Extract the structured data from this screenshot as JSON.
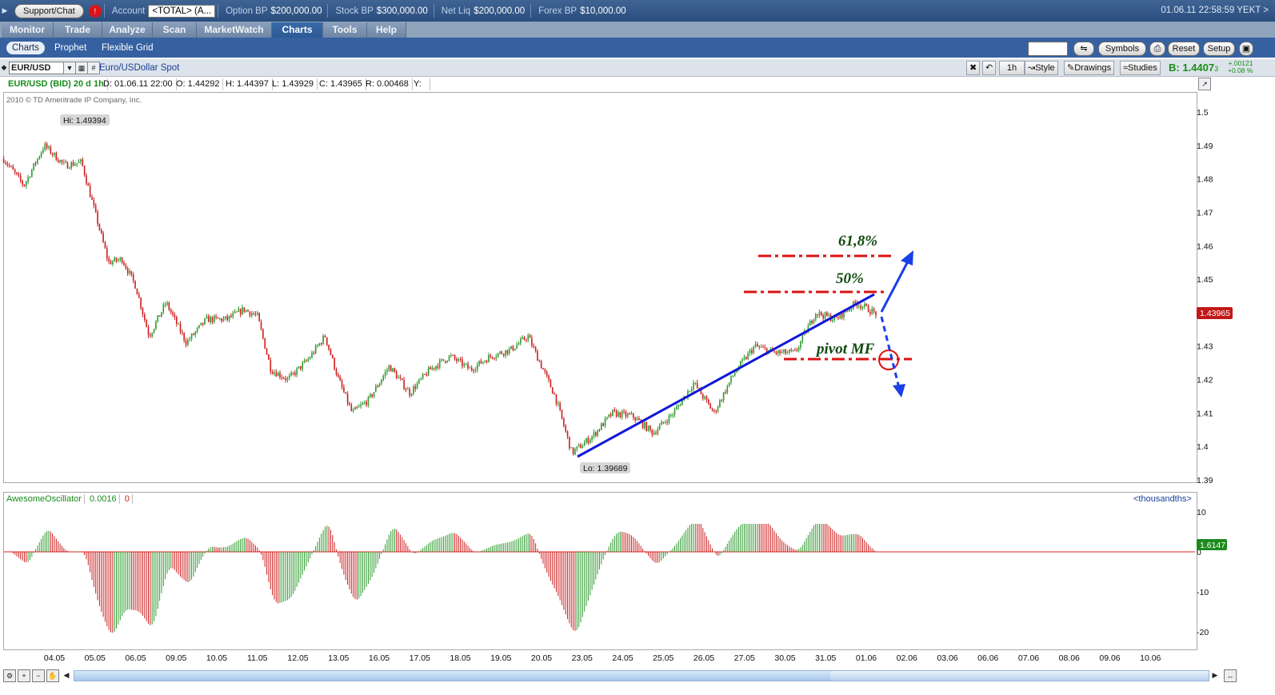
{
  "topbar": {
    "support_label": "Support/Chat",
    "account_label": "Account",
    "account_value": "<TOTAL> (A...",
    "option_bp_label": "Option BP",
    "option_bp_value": "$200,000.00",
    "stock_bp_label": "Stock BP",
    "stock_bp_value": "$300,000.00",
    "net_liq_label": "Net Liq",
    "net_liq_value": "$200,000.00",
    "forex_bp_label": "Forex BP",
    "forex_bp_value": "$10,000.00",
    "clock": "01.06.11 22:58:59 YEKT >"
  },
  "main_tabs": [
    {
      "label": "Monitor",
      "active": false
    },
    {
      "label": "Trade",
      "active": false
    },
    {
      "label": "Analyze",
      "active": false
    },
    {
      "label": "Scan",
      "active": false
    },
    {
      "label": "MarketWatch",
      "active": false
    },
    {
      "label": "Charts",
      "active": true
    },
    {
      "label": "Tools",
      "active": false
    },
    {
      "label": "Help",
      "active": false
    }
  ],
  "sub_tabs": [
    {
      "label": "Charts",
      "active": true
    },
    {
      "label": "Prophet",
      "active": false
    },
    {
      "label": "Flexible Grid",
      "active": false
    }
  ],
  "right_buttons": {
    "symbols": "Symbols",
    "reset": "Reset",
    "setup": "Setup"
  },
  "chart_toolbar": {
    "symbol": "EUR/USD",
    "hash": "#",
    "instrument_name": "Euro/USDollar Spot",
    "timeframe": "1h",
    "style": "Style",
    "drawings": "Drawings",
    "studies": "Studies",
    "bid": "B: 1.4407",
    "bid_small": "3",
    "change_abs": "+.00121",
    "change_pct": "+0.08 %"
  },
  "info_row": {
    "title": "EUR/USD (BID) 20 d 1h",
    "date": "D: 01.06.11 22:00",
    "open": "O: 1.44292",
    "high": "H: 1.44397",
    "low": "L: 1.43929",
    "close": "C: 1.43965",
    "range": "R: 0.00468",
    "y": "Y:"
  },
  "copyright": "2010 © TD Ameritrade IP Company, Inc.",
  "annotations": {
    "hi": "Hi: 1.49394",
    "lo": "Lo: 1.39689",
    "fib_618": "61,8%",
    "fib_50": "50%",
    "pivot": "pivot MF",
    "last_price": "1.43965"
  },
  "price_axis_labels": [
    "1.5",
    "1.49",
    "1.48",
    "1.47",
    "1.46",
    "1.45",
    "1.44",
    "1.43",
    "1.42",
    "1.41",
    "1.4",
    "1.39"
  ],
  "oscillator": {
    "name": "AwesomeOscillator",
    "value": "0.0016",
    "zero": "0",
    "units": "<thousandths>",
    "axis_labels": [
      "10",
      "0",
      "-10",
      "-20"
    ],
    "last_value": "1.6147"
  },
  "date_labels": [
    "04.05",
    "05.05",
    "06.05",
    "09.05",
    "10.05",
    "11.05",
    "12.05",
    "13.05",
    "16.05",
    "17.05",
    "18.05",
    "19.05",
    "20.05",
    "23.05",
    "24.05",
    "25.05",
    "26.05",
    "27.05",
    "30.05",
    "31.05",
    "01.06",
    "02.06",
    "03.06",
    "06.06",
    "07.06",
    "08.06",
    "09.06",
    "10.06"
  ],
  "colors": {
    "up": "#2f9a2f",
    "down": "#cc1f1f",
    "trendline": "#1018d8",
    "fib": "#dd1111",
    "arrow": "#1a3fe8"
  },
  "chart_data": {
    "type": "candlestick",
    "instrument": "EUR/USD",
    "title": "EUR/USD (BID) 20 d 1h",
    "ylim": [
      1.39,
      1.5
    ],
    "key_points": [
      {
        "x": "04.05",
        "y": 1.49394,
        "label": "Hi: 1.49394"
      },
      {
        "x": "23.05",
        "y": 1.39689,
        "label": "Lo: 1.39689"
      }
    ],
    "close_path": [
      {
        "x": "03.05",
        "y": 1.486
      },
      {
        "x": "03.05",
        "y": 1.478
      },
      {
        "x": "04.05",
        "y": 1.49
      },
      {
        "x": "04.05",
        "y": 1.484
      },
      {
        "x": "05.05",
        "y": 1.485
      },
      {
        "x": "05.05",
        "y": 1.47
      },
      {
        "x": "05.05",
        "y": 1.455
      },
      {
        "x": "06.05",
        "y": 1.456
      },
      {
        "x": "06.05",
        "y": 1.448
      },
      {
        "x": "06.05",
        "y": 1.433
      },
      {
        "x": "09.05",
        "y": 1.443
      },
      {
        "x": "09.05",
        "y": 1.431
      },
      {
        "x": "10.05",
        "y": 1.438
      },
      {
        "x": "10.05",
        "y": 1.438
      },
      {
        "x": "11.05",
        "y": 1.441
      },
      {
        "x": "11.05",
        "y": 1.439
      },
      {
        "x": "11.05",
        "y": 1.423
      },
      {
        "x": "12.05",
        "y": 1.42
      },
      {
        "x": "12.05",
        "y": 1.426
      },
      {
        "x": "13.05",
        "y": 1.433
      },
      {
        "x": "13.05",
        "y": 1.42
      },
      {
        "x": "13.05",
        "y": 1.41
      },
      {
        "x": "16.05",
        "y": 1.414
      },
      {
        "x": "16.05",
        "y": 1.424
      },
      {
        "x": "17.05",
        "y": 1.416
      },
      {
        "x": "17.05",
        "y": 1.423
      },
      {
        "x": "18.05",
        "y": 1.427
      },
      {
        "x": "18.05",
        "y": 1.423
      },
      {
        "x": "19.05",
        "y": 1.427
      },
      {
        "x": "19.05",
        "y": 1.429
      },
      {
        "x": "20.05",
        "y": 1.433
      },
      {
        "x": "20.05",
        "y": 1.424
      },
      {
        "x": "20.05",
        "y": 1.415
      },
      {
        "x": "23.05",
        "y": 1.398
      },
      {
        "x": "23.05",
        "y": 1.403
      },
      {
        "x": "24.05",
        "y": 1.41
      },
      {
        "x": "24.05",
        "y": 1.409
      },
      {
        "x": "25.05",
        "y": 1.404
      },
      {
        "x": "25.05",
        "y": 1.41
      },
      {
        "x": "26.05",
        "y": 1.419
      },
      {
        "x": "26.05",
        "y": 1.41
      },
      {
        "x": "27.05",
        "y": 1.422
      },
      {
        "x": "27.05",
        "y": 1.43
      },
      {
        "x": "30.05",
        "y": 1.428
      },
      {
        "x": "30.05",
        "y": 1.428
      },
      {
        "x": "31.05",
        "y": 1.44
      },
      {
        "x": "31.05",
        "y": 1.438
      },
      {
        "x": "01.06",
        "y": 1.443
      },
      {
        "x": "01.06",
        "y": 1.43965
      }
    ],
    "fib_levels": [
      {
        "label": "61,8%",
        "y": 1.4575
      },
      {
        "label": "50%",
        "y": 1.4465
      },
      {
        "label": "pivot MF",
        "y": 1.4265
      }
    ],
    "last_close": 1.43965
  }
}
